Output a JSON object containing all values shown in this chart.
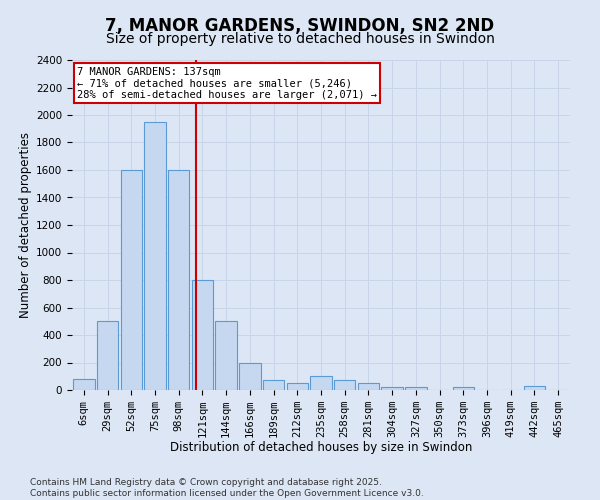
{
  "title": "7, MANOR GARDENS, SWINDON, SN2 2ND",
  "subtitle": "Size of property relative to detached houses in Swindon",
  "xlabel": "Distribution of detached houses by size in Swindon",
  "ylabel": "Number of detached properties",
  "categories": [
    "6sqm",
    "29sqm",
    "52sqm",
    "75sqm",
    "98sqm",
    "121sqm",
    "144sqm",
    "166sqm",
    "189sqm",
    "212sqm",
    "235sqm",
    "258sqm",
    "281sqm",
    "304sqm",
    "327sqm",
    "350sqm",
    "373sqm",
    "396sqm",
    "419sqm",
    "442sqm",
    "465sqm"
  ],
  "values": [
    80,
    500,
    1600,
    1950,
    1600,
    800,
    500,
    200,
    75,
    50,
    100,
    70,
    50,
    20,
    20,
    0,
    20,
    0,
    0,
    30,
    0
  ],
  "bar_color": "#c5d8f0",
  "bar_edge_color": "#5b9bd5",
  "grid_color": "#c8d4e8",
  "background_color": "#dce6f5",
  "vline_color": "#cc0000",
  "annotation_text": "7 MANOR GARDENS: 137sqm\n← 71% of detached houses are smaller (5,246)\n28% of semi-detached houses are larger (2,071) →",
  "annotation_box_color": "#cc0000",
  "ylim": [
    0,
    2400
  ],
  "yticks": [
    0,
    200,
    400,
    600,
    800,
    1000,
    1200,
    1400,
    1600,
    1800,
    2000,
    2200,
    2400
  ],
  "footer_text": "Contains HM Land Registry data © Crown copyright and database right 2025.\nContains public sector information licensed under the Open Government Licence v3.0.",
  "title_fontsize": 12,
  "subtitle_fontsize": 10,
  "label_fontsize": 8.5,
  "tick_fontsize": 7.5,
  "footer_fontsize": 6.5
}
